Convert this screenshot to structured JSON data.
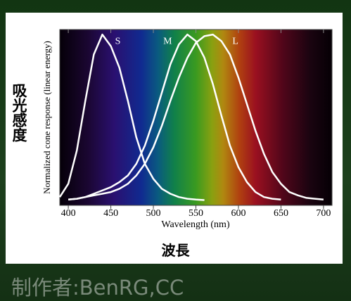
{
  "chart_data": {
    "type": "line",
    "xlabel": "Wavelength (nm)",
    "ylabel": "Normalized cone response (linear energy)",
    "x": [
      390,
      400,
      410,
      420,
      430,
      440,
      450,
      460,
      470,
      480,
      490,
      500,
      510,
      520,
      530,
      540,
      550,
      560,
      570,
      580,
      590,
      600,
      610,
      620,
      630,
      640,
      650,
      660,
      670,
      680,
      690,
      700
    ],
    "series": [
      {
        "name": "S",
        "color": "#ffffff",
        "values": [
          0.02,
          0.1,
          0.3,
          0.6,
          0.88,
          1.0,
          0.93,
          0.8,
          0.6,
          0.38,
          0.22,
          0.13,
          0.07,
          0.04,
          0.02,
          0.01,
          0.005,
          0.002,
          null,
          null,
          null,
          null,
          null,
          null,
          null,
          null,
          null,
          null,
          null,
          null,
          null,
          null
        ]
      },
      {
        "name": "M",
        "color": "#ffffff",
        "values": [
          null,
          0.005,
          0.01,
          0.02,
          0.04,
          0.06,
          0.08,
          0.11,
          0.15,
          0.22,
          0.33,
          0.48,
          0.65,
          0.82,
          0.94,
          1.0,
          0.96,
          0.86,
          0.7,
          0.51,
          0.33,
          0.2,
          0.11,
          0.05,
          0.02,
          0.01,
          0.005,
          null,
          null,
          null,
          null,
          null
        ]
      },
      {
        "name": "L",
        "color": "#ffffff",
        "values": [
          null,
          0.005,
          0.01,
          0.02,
          0.03,
          0.04,
          0.05,
          0.07,
          0.1,
          0.15,
          0.22,
          0.32,
          0.45,
          0.6,
          0.74,
          0.86,
          0.95,
          0.99,
          1.0,
          0.96,
          0.88,
          0.74,
          0.58,
          0.42,
          0.28,
          0.17,
          0.1,
          0.05,
          0.03,
          0.015,
          0.01,
          0.005
        ]
      }
    ],
    "xlim": [
      390,
      710
    ],
    "ylim": [
      -0.03,
      1.03
    ],
    "xticks": [
      400,
      450,
      500,
      550,
      600,
      650,
      700
    ]
  },
  "annotations": {
    "y_title": "吸光感度",
    "x_title": "波長",
    "credit": "制作者:BenRG,CC"
  }
}
